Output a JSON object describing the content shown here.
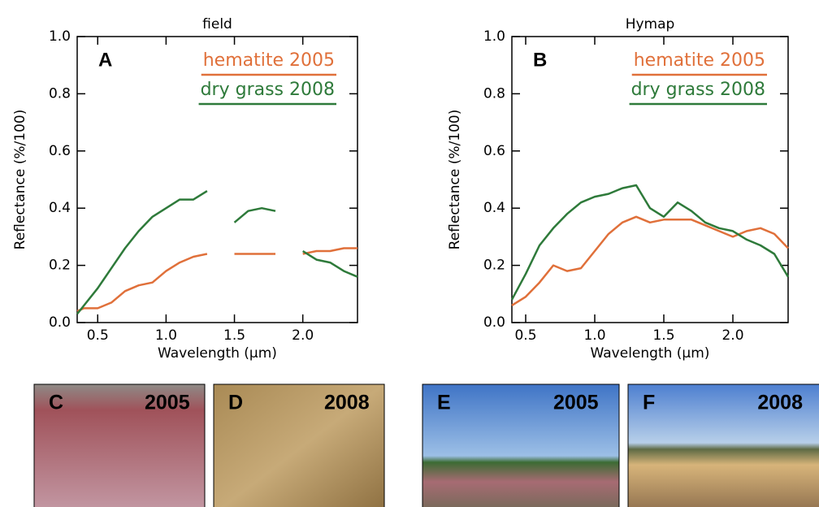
{
  "chart_data": [
    {
      "type": "line",
      "title": "field",
      "annotation": "A",
      "xlabel": "Wavelength (μm)",
      "ylabel": "Reflectance (%/100)",
      "x": [
        0.35,
        0.4,
        0.5,
        0.6,
        0.7,
        0.8,
        0.9,
        1.0,
        1.1,
        1.2,
        1.3,
        1.4,
        1.5,
        1.6,
        1.7,
        1.8,
        1.9,
        2.0,
        2.1,
        2.2,
        2.3,
        2.4
      ],
      "series": [
        {
          "name": "hematite 2005",
          "color": "#e0703a",
          "values": [
            0.04,
            0.05,
            0.05,
            0.07,
            0.11,
            0.13,
            0.14,
            0.18,
            0.21,
            0.23,
            0.24,
            null,
            0.24,
            0.24,
            0.24,
            0.24,
            null,
            0.24,
            0.25,
            0.25,
            0.26,
            0.26
          ]
        },
        {
          "name": "dry grass 2008",
          "color": "#2e7a3a",
          "values": [
            0.03,
            0.06,
            0.12,
            0.19,
            0.26,
            0.32,
            0.37,
            0.4,
            0.43,
            0.43,
            0.46,
            null,
            0.35,
            0.39,
            0.4,
            0.39,
            null,
            0.25,
            0.22,
            0.21,
            0.18,
            0.16
          ]
        }
      ],
      "xlim": [
        0.35,
        2.4
      ],
      "ylim": [
        0,
        1
      ],
      "xticks": [
        0.5,
        {
          "value": 1,
          "label": "1.0"
        },
        1.5,
        {
          "value": 2,
          "label": "2.0"
        }
      ],
      "yticks": [
        {
          "value": 0,
          "label": "0.0"
        },
        0.2,
        0.4,
        0.6,
        0.8,
        {
          "value": 1,
          "label": "1.0"
        }
      ],
      "legend": "upper right"
    },
    {
      "type": "line",
      "title": "Hymap",
      "annotation": "B",
      "xlabel": "Wavelength (μm)",
      "ylabel": "Reflectance (%/100)",
      "x": [
        0.4,
        0.5,
        0.6,
        0.7,
        0.8,
        0.9,
        1.0,
        1.1,
        1.2,
        1.3,
        1.4,
        1.5,
        1.6,
        1.7,
        1.8,
        1.9,
        2.0,
        2.1,
        2.2,
        2.3,
        2.4
      ],
      "series": [
        {
          "name": "hematite 2005",
          "color": "#e0703a",
          "values": [
            0.06,
            0.09,
            0.14,
            0.2,
            0.18,
            0.19,
            0.25,
            0.31,
            0.35,
            0.37,
            0.35,
            0.36,
            0.36,
            0.36,
            0.34,
            0.32,
            0.3,
            0.32,
            0.33,
            0.31,
            0.26
          ]
        },
        {
          "name": "dry grass 2008",
          "color": "#2e7a3a",
          "values": [
            0.08,
            0.17,
            0.27,
            0.33,
            0.38,
            0.42,
            0.44,
            0.45,
            0.47,
            0.48,
            0.4,
            0.37,
            0.42,
            0.39,
            0.35,
            0.33,
            0.32,
            0.29,
            0.27,
            0.24,
            0.16
          ]
        }
      ],
      "xlim": [
        0.4,
        2.4
      ],
      "ylim": [
        0,
        1
      ],
      "xticks": [
        0.5,
        {
          "value": 1,
          "label": "1.0"
        },
        1.5,
        {
          "value": 2,
          "label": "2.0"
        }
      ],
      "yticks": [
        {
          "value": 0,
          "label": "0.0"
        },
        0.2,
        0.4,
        0.6,
        0.8,
        {
          "value": 1,
          "label": "1.0"
        }
      ],
      "legend": "upper right"
    }
  ],
  "photos": [
    {
      "label": "C",
      "year": "2005"
    },
    {
      "label": "D",
      "year": "2008"
    },
    {
      "label": "E",
      "year": "2005"
    },
    {
      "label": "F",
      "year": "2008"
    }
  ]
}
